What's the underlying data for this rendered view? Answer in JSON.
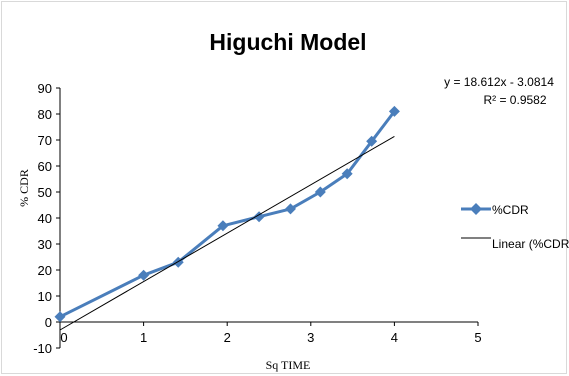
{
  "chart_data": {
    "type": "scatter",
    "title": "Higuchi Model",
    "xlabel": "Sq TIME",
    "ylabel": "% CDR",
    "xlim": [
      0,
      5
    ],
    "ylim": [
      -10,
      90
    ],
    "xticks": [
      0,
      1,
      2,
      3,
      4,
      5
    ],
    "yticks": [
      -10,
      0,
      10,
      20,
      30,
      40,
      50,
      60,
      70,
      80,
      90
    ],
    "grid": false,
    "legend_position": "right",
    "series": [
      {
        "name": "%CDR",
        "mode": "lines+markers",
        "marker": "diamond",
        "color": "#4a7ebb",
        "x": [
          0,
          1,
          1.414,
          1.949,
          2.381,
          2.757,
          3.114,
          3.435,
          3.728,
          4.0
        ],
        "y": [
          2,
          18,
          23,
          37,
          40.5,
          43.5,
          50,
          57,
          69.5,
          81
        ]
      },
      {
        "name": "Linear (%CDR)",
        "mode": "line",
        "color": "#000000",
        "x": [
          0,
          4.0
        ],
        "y": [
          -3.0814,
          71.3666
        ]
      }
    ],
    "trendline": {
      "equation": "y = 18.612x - 3.0814",
      "r_squared": "R² = 0.9582"
    }
  }
}
